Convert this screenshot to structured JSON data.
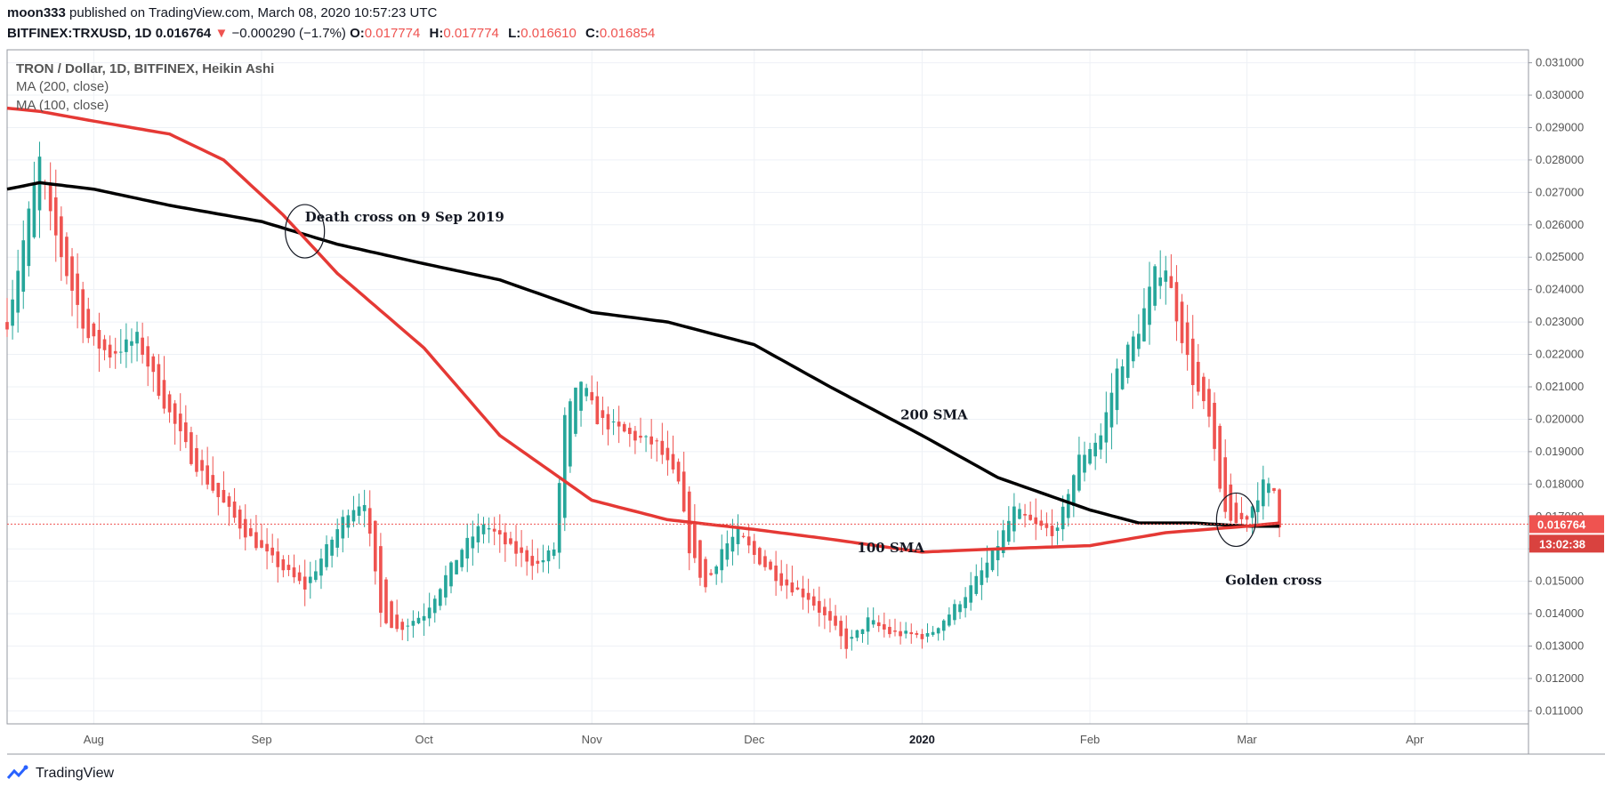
{
  "header": {
    "author": "moon333",
    "published": "published on TradingView.com, March 08, 2020 10:57:23 UTC",
    "symbol": "BITFINEX:TRXUSD, 1D",
    "last": "0.016764",
    "arrow": "▼",
    "change": "−0.000290 (−1.7%)",
    "o_label": "O:",
    "o_value": "0.017774",
    "h_label": "H:",
    "h_value": "0.017774",
    "l_label": "L:",
    "l_value": "0.016610",
    "c_label": "C:",
    "c_value": "0.016854"
  },
  "legend": {
    "title": "TRON / Dollar, 1D, BITFINEX, Heikin Ashi",
    "ma1": "MA (200, close)",
    "ma2": "MA (100, close)"
  },
  "footer": {
    "brand": "TradingView"
  },
  "colors": {
    "up": "#26a69a",
    "down": "#ef5350",
    "sma100": "#e53935",
    "sma200": "#000000",
    "price_tag": "#ef5350"
  },
  "chart_data": {
    "type": "candlestick",
    "style": "Heikin Ashi",
    "x_range": [
      "2019-07-16",
      "2020-04-22"
    ],
    "ylim": [
      0.0106,
      0.0314
    ],
    "grid": true,
    "yticks": [
      "0.011000",
      "0.012000",
      "0.013000",
      "0.014000",
      "0.015000",
      "0.016000",
      "0.017000",
      "0.018000",
      "0.019000",
      "0.020000",
      "0.021000",
      "0.022000",
      "0.023000",
      "0.024000",
      "0.025000",
      "0.026000",
      "0.027000",
      "0.028000",
      "0.029000",
      "0.030000",
      "0.031000"
    ],
    "xticks": [
      {
        "date": "2019-08-01",
        "label": "Aug",
        "bold": false
      },
      {
        "date": "2019-09-01",
        "label": "Sep",
        "bold": false
      },
      {
        "date": "2019-10-01",
        "label": "Oct",
        "bold": false
      },
      {
        "date": "2019-11-01",
        "label": "Nov",
        "bold": false
      },
      {
        "date": "2019-12-01",
        "label": "Dec",
        "bold": false
      },
      {
        "date": "2020-01-01",
        "label": "2020",
        "bold": true
      },
      {
        "date": "2020-02-01",
        "label": "Feb",
        "bold": false
      },
      {
        "date": "2020-03-01",
        "label": "Mar",
        "bold": false
      },
      {
        "date": "2020-04-01",
        "label": "Apr",
        "bold": false
      }
    ],
    "price_keypoints": [
      [
        "2019-07-16",
        0.023
      ],
      [
        "2019-07-19",
        0.0255
      ],
      [
        "2019-07-22",
        0.028
      ],
      [
        "2019-07-24",
        0.0262
      ],
      [
        "2019-07-27",
        0.0245
      ],
      [
        "2019-07-31",
        0.0225
      ],
      [
        "2019-08-04",
        0.022
      ],
      [
        "2019-08-09",
        0.0225
      ],
      [
        "2019-08-14",
        0.0205
      ],
      [
        "2019-08-19",
        0.0188
      ],
      [
        "2019-08-24",
        0.0176
      ],
      [
        "2019-08-29",
        0.0165
      ],
      [
        "2019-09-02",
        0.0158
      ],
      [
        "2019-09-09",
        0.0148
      ],
      [
        "2019-09-13",
        0.016
      ],
      [
        "2019-09-17",
        0.0172
      ],
      [
        "2019-09-20",
        0.0175
      ],
      [
        "2019-09-23",
        0.014
      ],
      [
        "2019-09-26",
        0.0135
      ],
      [
        "2019-10-01",
        0.014
      ],
      [
        "2019-10-08",
        0.016
      ],
      [
        "2019-10-12",
        0.0168
      ],
      [
        "2019-10-17",
        0.016
      ],
      [
        "2019-10-22",
        0.0155
      ],
      [
        "2019-10-25",
        0.016
      ],
      [
        "2019-10-27",
        0.02
      ],
      [
        "2019-10-30",
        0.0212
      ],
      [
        "2019-11-02",
        0.02
      ],
      [
        "2019-11-08",
        0.0195
      ],
      [
        "2019-11-13",
        0.0192
      ],
      [
        "2019-11-17",
        0.018
      ],
      [
        "2019-11-19",
        0.016
      ],
      [
        "2019-11-22",
        0.0148
      ],
      [
        "2019-11-25",
        0.016
      ],
      [
        "2019-11-28",
        0.0165
      ],
      [
        "2019-12-01",
        0.0158
      ],
      [
        "2019-12-06",
        0.015
      ],
      [
        "2019-12-11",
        0.0145
      ],
      [
        "2019-12-16",
        0.0135
      ],
      [
        "2019-12-18",
        0.013
      ],
      [
        "2019-12-22",
        0.0138
      ],
      [
        "2019-12-26",
        0.0134
      ],
      [
        "2020-01-02",
        0.0133
      ],
      [
        "2020-01-06",
        0.014
      ],
      [
        "2020-01-10",
        0.0148
      ],
      [
        "2020-01-14",
        0.0158
      ],
      [
        "2020-01-18",
        0.0172
      ],
      [
        "2020-01-22",
        0.0167
      ],
      [
        "2020-01-26",
        0.0165
      ],
      [
        "2020-01-28",
        0.0178
      ],
      [
        "2020-01-30",
        0.0188
      ],
      [
        "2020-02-03",
        0.0195
      ],
      [
        "2020-02-06",
        0.0215
      ],
      [
        "2020-02-10",
        0.0228
      ],
      [
        "2020-02-13",
        0.0245
      ],
      [
        "2020-02-15",
        0.0247
      ],
      [
        "2020-02-17",
        0.0232
      ],
      [
        "2020-02-20",
        0.0212
      ],
      [
        "2020-02-23",
        0.02
      ],
      [
        "2020-02-25",
        0.0178
      ],
      [
        "2020-02-27",
        0.0167
      ],
      [
        "2020-03-01",
        0.017
      ],
      [
        "2020-03-04",
        0.018
      ],
      [
        "2020-03-06",
        0.0178
      ],
      [
        "2020-03-07",
        0.0168
      ]
    ],
    "sma200_keypoints": [
      [
        "2019-07-16",
        0.0271
      ],
      [
        "2019-07-22",
        0.0273
      ],
      [
        "2019-08-01",
        0.0271
      ],
      [
        "2019-08-15",
        0.0266
      ],
      [
        "2019-09-01",
        0.0261
      ],
      [
        "2019-09-15",
        0.0254
      ],
      [
        "2019-10-01",
        0.0248
      ],
      [
        "2019-10-15",
        0.0243
      ],
      [
        "2019-11-01",
        0.0233
      ],
      [
        "2019-11-15",
        0.023
      ],
      [
        "2019-12-01",
        0.0223
      ],
      [
        "2019-12-15",
        0.021
      ],
      [
        "2020-01-01",
        0.0195
      ],
      [
        "2020-01-15",
        0.0182
      ],
      [
        "2020-02-01",
        0.0172
      ],
      [
        "2020-02-10",
        0.0168
      ],
      [
        "2020-02-20",
        0.0168
      ],
      [
        "2020-03-01",
        0.0167
      ],
      [
        "2020-03-07",
        0.0167
      ]
    ],
    "sma100_keypoints": [
      [
        "2019-07-16",
        0.0296
      ],
      [
        "2019-07-22",
        0.0295
      ],
      [
        "2019-08-01",
        0.0292
      ],
      [
        "2019-08-15",
        0.0288
      ],
      [
        "2019-08-25",
        0.028
      ],
      [
        "2019-09-05",
        0.0263
      ],
      [
        "2019-09-15",
        0.0245
      ],
      [
        "2019-10-01",
        0.0222
      ],
      [
        "2019-10-15",
        0.0195
      ],
      [
        "2019-11-01",
        0.0175
      ],
      [
        "2019-11-15",
        0.0169
      ],
      [
        "2019-12-01",
        0.0166
      ],
      [
        "2019-12-15",
        0.0163
      ],
      [
        "2020-01-01",
        0.0159
      ],
      [
        "2020-01-15",
        0.016
      ],
      [
        "2020-02-01",
        0.0161
      ],
      [
        "2020-02-15",
        0.0165
      ],
      [
        "2020-03-01",
        0.0167
      ],
      [
        "2020-03-07",
        0.0168
      ]
    ],
    "last_price": 0.016764,
    "last_price_label": "0.016764",
    "countdown_label": "13:02:38",
    "annotations": [
      {
        "text": "Death cross on 9 Sep 2019",
        "date": "2019-09-09",
        "price": 0.0261
      },
      {
        "text": "200 SMA",
        "date": "2019-12-28",
        "price": 0.02
      },
      {
        "text": "100 SMA",
        "date": "2019-12-20",
        "price": 0.0159
      },
      {
        "text": "Golden cross",
        "date": "2020-02-26",
        "price": 0.0149
      }
    ],
    "circles": [
      {
        "date": "2019-09-09",
        "price": 0.0258
      },
      {
        "date": "2020-02-28",
        "price": 0.0169
      }
    ]
  }
}
